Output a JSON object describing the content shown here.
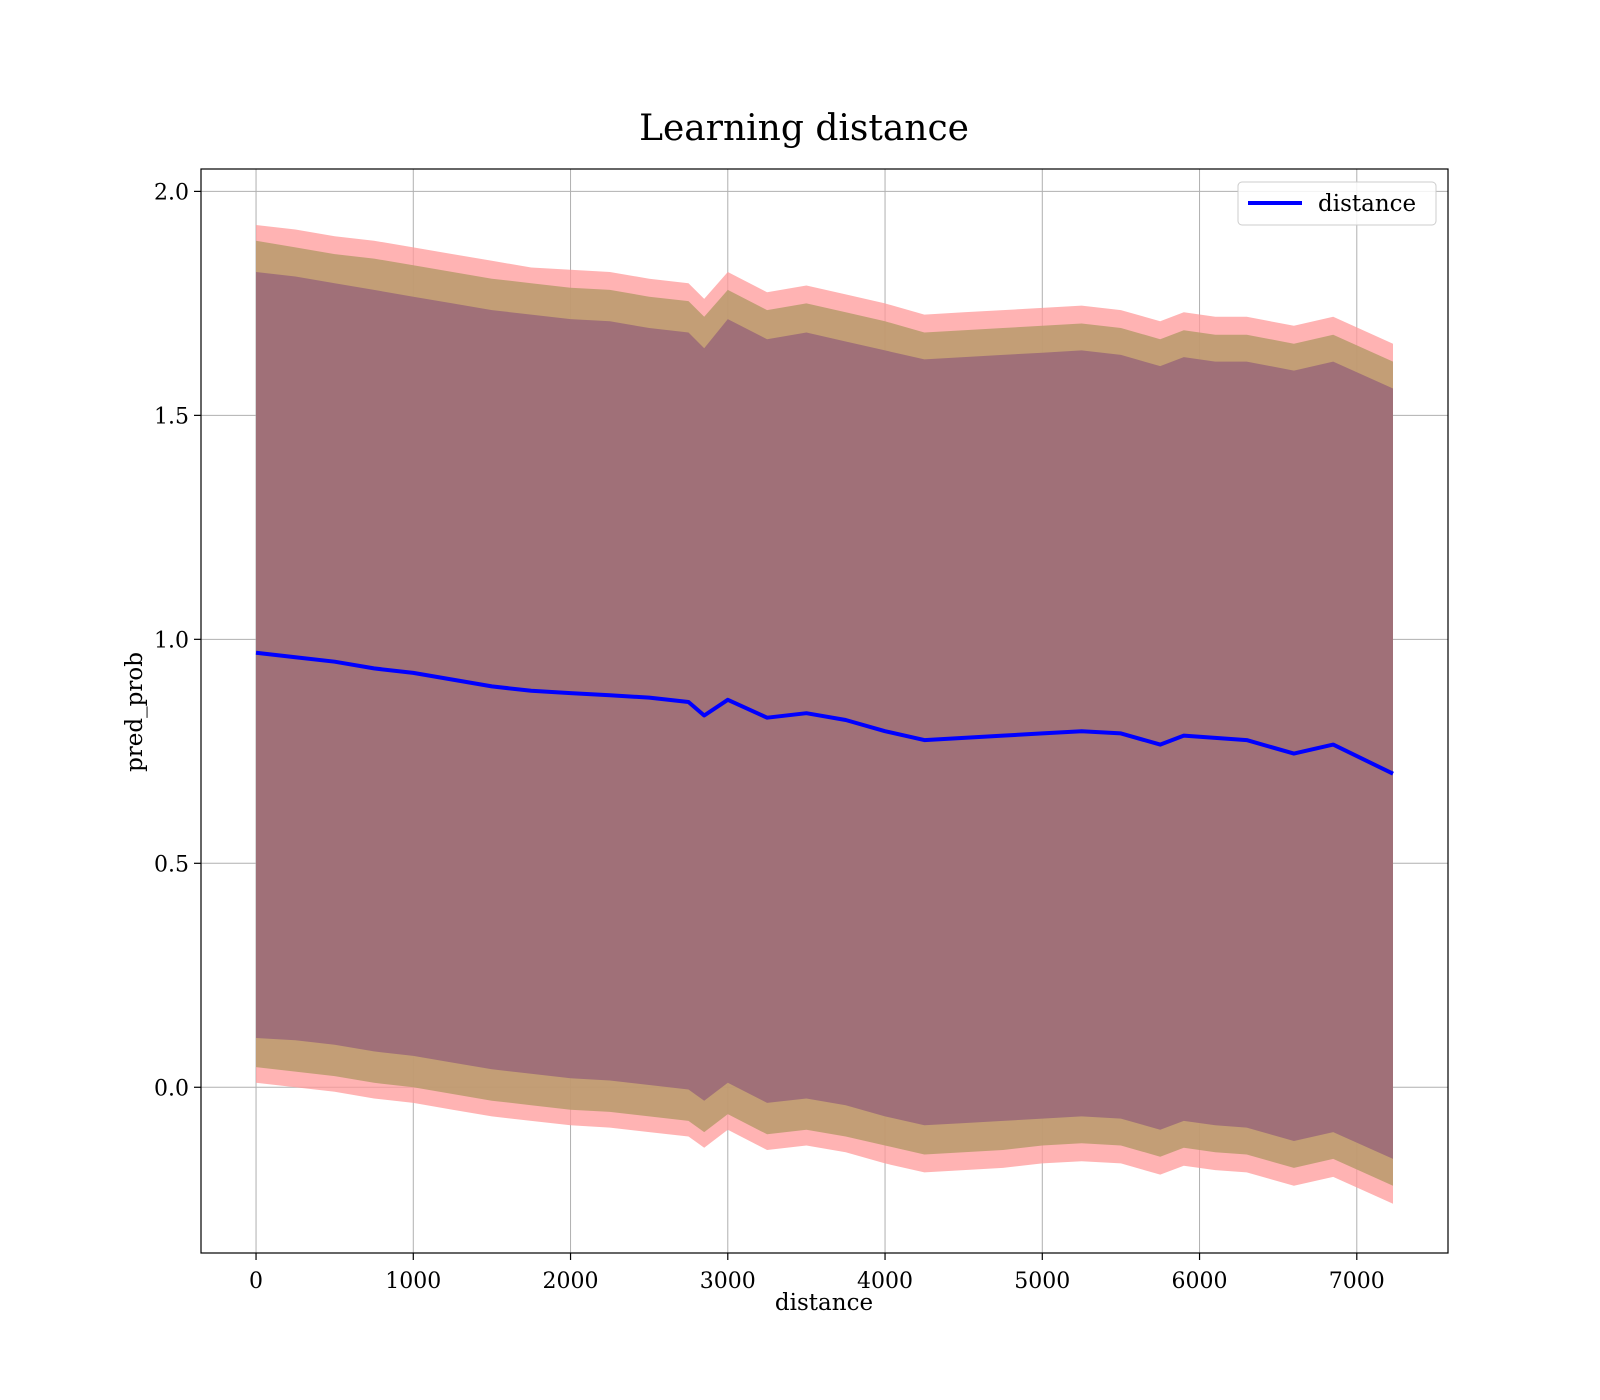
{
  "chart_data": {
    "type": "area",
    "title": "Learning distance",
    "xlabel": "distance",
    "ylabel": "pred_prob",
    "xlim": [
      -350,
      7580
    ],
    "ylim": [
      -0.37,
      2.05
    ],
    "xticks": [
      0,
      1000,
      2000,
      3000,
      4000,
      5000,
      6000,
      7000
    ],
    "xtick_labels": [
      "0",
      "1000",
      "2000",
      "3000",
      "4000",
      "5000",
      "6000",
      "7000"
    ],
    "yticks": [
      0.0,
      0.5,
      1.0,
      1.5,
      2.0
    ],
    "ytick_labels": [
      "0.0",
      "0.5",
      "1.0",
      "1.5",
      "2.0"
    ],
    "grid": true,
    "legend_position": "top-right",
    "colors": {
      "line": "#0000ff",
      "outer_band": "#ff9999",
      "middle_band": "#b89a6b",
      "inner_band": "#a07078",
      "grid": "#b0b0b0"
    },
    "x": [
      0,
      250,
      500,
      750,
      1000,
      1250,
      1500,
      1750,
      2000,
      2250,
      2500,
      2750,
      2850,
      3000,
      3250,
      3500,
      3750,
      4000,
      4250,
      4500,
      4750,
      5000,
      5250,
      5500,
      5750,
      5900,
      6100,
      6300,
      6600,
      6850,
      7230
    ],
    "series": [
      {
        "name": "distance",
        "values": [
          0.97,
          0.96,
          0.95,
          0.935,
          0.925,
          0.91,
          0.895,
          0.885,
          0.88,
          0.875,
          0.87,
          0.86,
          0.83,
          0.865,
          0.825,
          0.835,
          0.82,
          0.795,
          0.775,
          0.78,
          0.785,
          0.79,
          0.795,
          0.79,
          0.765,
          0.785,
          0.78,
          0.775,
          0.745,
          0.765,
          0.7
        ]
      }
    ],
    "bands": [
      {
        "level": "outer",
        "upper": [
          1.925,
          1.915,
          1.9,
          1.89,
          1.875,
          1.86,
          1.845,
          1.83,
          1.825,
          1.82,
          1.805,
          1.795,
          1.76,
          1.82,
          1.775,
          1.79,
          1.77,
          1.75,
          1.725,
          1.73,
          1.735,
          1.74,
          1.745,
          1.735,
          1.71,
          1.73,
          1.72,
          1.72,
          1.7,
          1.72,
          1.66
        ],
        "lower": [
          0.01,
          0.0,
          -0.01,
          -0.025,
          -0.035,
          -0.05,
          -0.065,
          -0.075,
          -0.085,
          -0.09,
          -0.1,
          -0.11,
          -0.135,
          -0.095,
          -0.14,
          -0.13,
          -0.145,
          -0.17,
          -0.19,
          -0.185,
          -0.18,
          -0.17,
          -0.165,
          -0.17,
          -0.195,
          -0.175,
          -0.185,
          -0.19,
          -0.22,
          -0.2,
          -0.26
        ]
      },
      {
        "level": "middle",
        "upper": [
          1.89,
          1.875,
          1.86,
          1.85,
          1.835,
          1.82,
          1.805,
          1.795,
          1.785,
          1.78,
          1.765,
          1.755,
          1.72,
          1.78,
          1.735,
          1.75,
          1.73,
          1.71,
          1.685,
          1.69,
          1.695,
          1.7,
          1.705,
          1.695,
          1.67,
          1.69,
          1.68,
          1.68,
          1.66,
          1.68,
          1.62
        ],
        "lower": [
          0.045,
          0.035,
          0.025,
          0.01,
          0.0,
          -0.015,
          -0.03,
          -0.04,
          -0.05,
          -0.055,
          -0.065,
          -0.075,
          -0.1,
          -0.06,
          -0.105,
          -0.095,
          -0.11,
          -0.13,
          -0.15,
          -0.145,
          -0.14,
          -0.13,
          -0.125,
          -0.13,
          -0.155,
          -0.135,
          -0.145,
          -0.15,
          -0.18,
          -0.16,
          -0.22
        ]
      },
      {
        "level": "inner",
        "upper": [
          1.82,
          1.81,
          1.795,
          1.78,
          1.765,
          1.75,
          1.735,
          1.725,
          1.715,
          1.71,
          1.695,
          1.685,
          1.65,
          1.715,
          1.67,
          1.685,
          1.665,
          1.645,
          1.625,
          1.63,
          1.635,
          1.64,
          1.645,
          1.635,
          1.61,
          1.63,
          1.62,
          1.62,
          1.6,
          1.62,
          1.56
        ],
        "lower": [
          0.11,
          0.105,
          0.095,
          0.08,
          0.07,
          0.055,
          0.04,
          0.03,
          0.02,
          0.015,
          0.005,
          -0.005,
          -0.03,
          0.01,
          -0.035,
          -0.025,
          -0.04,
          -0.065,
          -0.085,
          -0.08,
          -0.075,
          -0.07,
          -0.065,
          -0.07,
          -0.095,
          -0.075,
          -0.085,
          -0.09,
          -0.12,
          -0.1,
          -0.16
        ]
      }
    ]
  }
}
